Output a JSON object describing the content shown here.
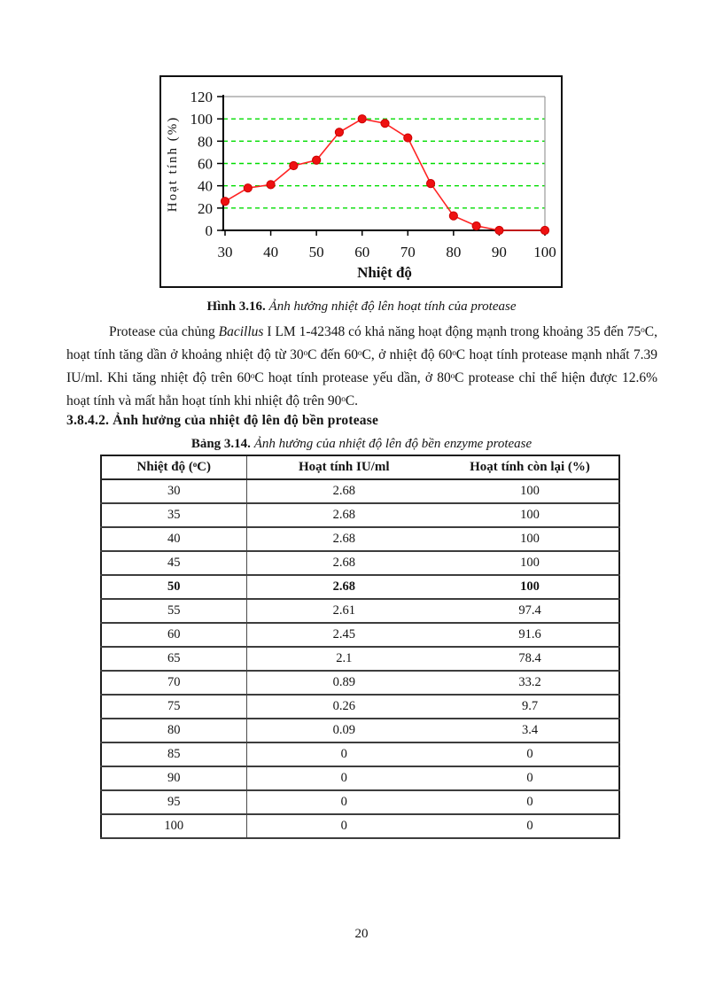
{
  "page": {
    "number": "20"
  },
  "figure": {
    "caption_parts": [
      {
        "text": "Hình 3.16. ",
        "bold": true
      },
      {
        "text": "Ảnh hưởng nhiệt độ lên hoạt tính của protease",
        "italic": true
      }
    ]
  },
  "chart_data": {
    "type": "line",
    "x": [
      30,
      35,
      40,
      45,
      50,
      55,
      60,
      65,
      70,
      75,
      80,
      85,
      90,
      100
    ],
    "values": [
      26,
      38,
      41,
      58,
      63,
      88,
      100,
      96,
      83,
      42,
      13,
      4,
      0,
      0
    ],
    "x_ticks": [
      30,
      40,
      50,
      60,
      70,
      80,
      90,
      100
    ],
    "y_ticks": [
      0,
      20,
      40,
      60,
      80,
      100,
      120
    ],
    "ylim": [
      0,
      120
    ],
    "xlim": [
      30,
      100
    ],
    "xlabel": "Nhiệt độ",
    "ylabel": "Hoạt tính (%)",
    "title": "",
    "grid": "horizontal dashed gridlines at 20,40,60,80,100",
    "legend": "none",
    "line_color": "#ff2323",
    "marker_color": "#ee1111",
    "marker_edge_color": "#cc0000",
    "grid_color": "#00dd00",
    "axis_color": "#000000"
  },
  "paragraph": {
    "parts": [
      {
        "text": "Protease của chủng "
      },
      {
        "text": "Bacillus",
        "italic": true
      },
      {
        "text": " I LM 1-42348  có khả năng hoạt động mạnh trong khoảng 35 đến 75ᵒC, hoạt tính tăng dần ở khoảng nhiệt độ từ 30ᵒC đến 60ᵒC,  ở nhiệt độ 60ᵒC hoạt tính protease mạnh nhất 7.39 IU/ml. Khi tăng nhiệt độ trên 60ᵒC hoạt tính  protease yếu dần,  ở 80ᵒC protease chỉ thể hiện được 12.6% hoạt tính  và mất hẳn hoạt tính khi nhiệt độ trên 90ᵒC."
      }
    ]
  },
  "section": {
    "heading": "3.8.4.2. Ảnh hưởng của nhiệt độ lên độ bền protease"
  },
  "table": {
    "caption_parts": [
      {
        "text": "Bảng 3.14. ",
        "bold": true
      },
      {
        "text": "Ảnh hưởng của nhiệt độ lên độ bền enzyme protease",
        "italic": true
      }
    ],
    "columns": [
      "Nhiệt độ (ᵒC)",
      "Hoạt tính IU/ml",
      "Hoạt tính còn lại (%)"
    ],
    "rows": [
      {
        "temp": "30",
        "iu": "2.68",
        "remain": "100"
      },
      {
        "temp": "35",
        "iu": "2.68",
        "remain": "100"
      },
      {
        "temp": "40",
        "iu": "2.68",
        "remain": "100"
      },
      {
        "temp": "45",
        "iu": "2.68",
        "remain": "100"
      },
      {
        "temp": "50",
        "iu": "2.68",
        "remain": "100",
        "bold": true
      },
      {
        "temp": "55",
        "iu": "2.61",
        "remain": "97.4"
      },
      {
        "temp": "60",
        "iu": "2.45",
        "remain": "91.6"
      },
      {
        "temp": "65",
        "iu": "2.1",
        "remain": "78.4"
      },
      {
        "temp": "70",
        "iu": "0.89",
        "remain": "33.2"
      },
      {
        "temp": "75",
        "iu": "0.26",
        "remain": "9.7"
      },
      {
        "temp": "80",
        "iu": "0.09",
        "remain": "3.4"
      },
      {
        "temp": "85",
        "iu": "0",
        "remain": "0"
      },
      {
        "temp": "90",
        "iu": "0",
        "remain": "0"
      },
      {
        "temp": "95",
        "iu": "0",
        "remain": "0"
      },
      {
        "temp": "100",
        "iu": "0",
        "remain": "0"
      }
    ]
  }
}
